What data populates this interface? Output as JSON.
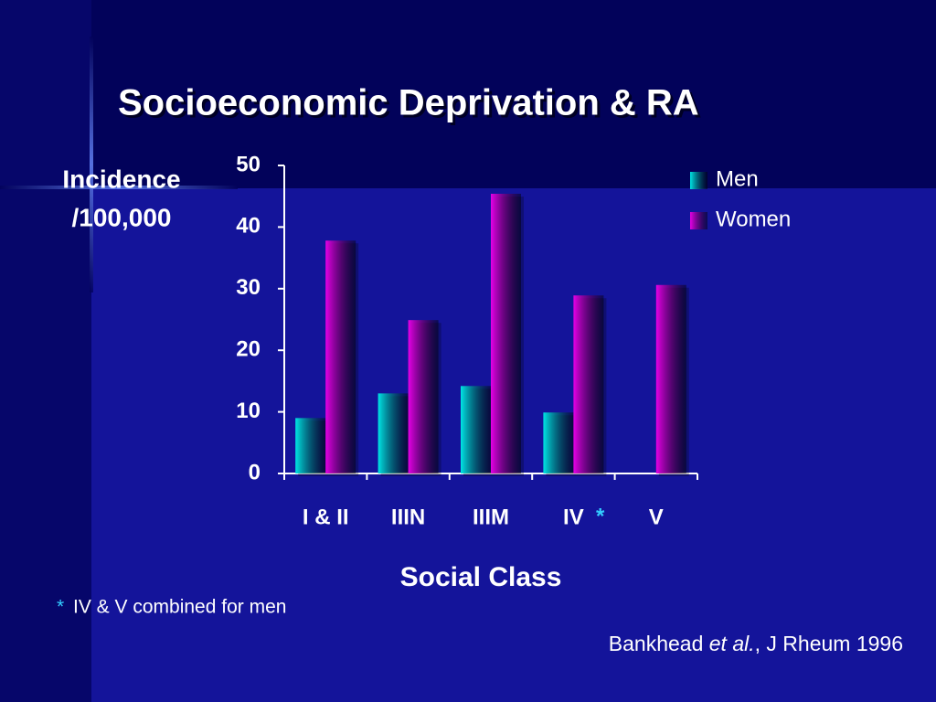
{
  "chart_data": {
    "type": "bar",
    "title": "Socioeconomic Deprivation & RA",
    "ylabel": [
      "Incidence",
      "/100,000"
    ],
    "xlabel": "Social Class",
    "categories": [
      "I & II",
      "IIIN",
      "IIIM",
      "IV",
      "V"
    ],
    "series": [
      {
        "name": "Men",
        "color": "#00e5e5",
        "values": [
          9,
          13,
          14.2,
          9.9,
          null
        ]
      },
      {
        "name": "Women",
        "color": "#e600e6",
        "values": [
          37.8,
          24.9,
          45.4,
          28.9,
          30.6
        ]
      }
    ],
    "ylim": [
      0,
      50
    ],
    "yticks": [
      0,
      10,
      20,
      30,
      40,
      50
    ],
    "legend": "top-right",
    "footnote": {
      "marker": "*",
      "text": "IV & V combined for men"
    },
    "source": {
      "author": "Bankhead",
      "etal": "et al.",
      "rest": ", J Rheum 1996"
    }
  }
}
